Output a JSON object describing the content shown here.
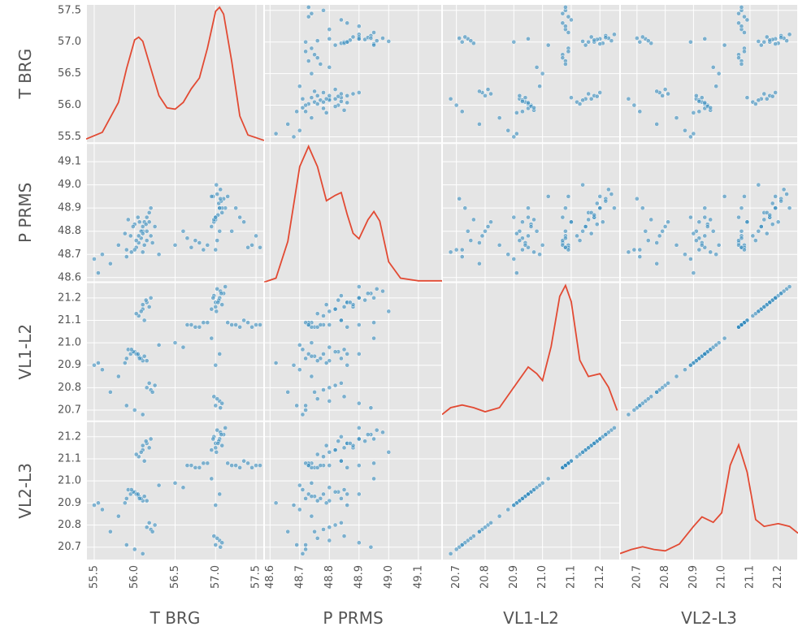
{
  "chart_data": {
    "type": "scatter_matrix",
    "diagonal": "kde",
    "grid": true,
    "point_color": "#348abd",
    "line_color": "#e24a33",
    "background": "#e5e5e5",
    "variables": [
      {
        "name": "T BRG",
        "lim": [
          55.4,
          57.6
        ],
        "ticks": [
          55.5,
          {
            "value": 56,
            "label": "56.0"
          },
          56.5,
          {
            "value": 57,
            "label": "57.0"
          },
          57.5
        ],
        "values": [
          55.9,
          55.95,
          56.0,
          56.05,
          56.1,
          55.92,
          56.02,
          56.08,
          55.98,
          56.12,
          55.88,
          56.04,
          55.96,
          56.06,
          56.15,
          56.05,
          56.1,
          56.15,
          56.2,
          56.08,
          56.12,
          56.18,
          56.02,
          56.14,
          56.1,
          56.95,
          57.0,
          57.05,
          57.1,
          57.02,
          57.08,
          56.98,
          57.04,
          57.06,
          57.0,
          57.12,
          56.97,
          57.03,
          57.07,
          57.01,
          56.7,
          56.8,
          56.9,
          57.2,
          57.3,
          57.4,
          57.5,
          56.75,
          56.85,
          57.25,
          57.35,
          57.45,
          57.15,
          56.65,
          57.55,
          57.0,
          57.05,
          56.98,
          57.08,
          57.02,
          57.06,
          56.2,
          56.25,
          56.15,
          56.22,
          56.18,
          55.5,
          55.6,
          55.7,
          55.8,
          55.9,
          56.0,
          56.1,
          55.55,
          56.5,
          56.6,
          57.0,
          57.05,
          56.95,
          56.3
        ],
        "kde": {
          "x": [
            55.4,
            55.6,
            55.8,
            55.9,
            56.0,
            56.05,
            56.1,
            56.2,
            56.3,
            56.4,
            56.5,
            56.6,
            56.7,
            56.8,
            56.9,
            57.0,
            57.05,
            57.1,
            57.2,
            57.3,
            57.4,
            57.6
          ],
          "density": [
            0.03,
            0.08,
            0.3,
            0.55,
            0.76,
            0.78,
            0.75,
            0.55,
            0.35,
            0.26,
            0.25,
            0.3,
            0.4,
            0.48,
            0.7,
            0.97,
            1.0,
            0.95,
            0.6,
            0.2,
            0.06,
            0.02
          ]
        }
      },
      {
        "name": "P PRMS",
        "lim": [
          48.58,
          49.18
        ],
        "ticks": [
          48.6,
          48.7,
          48.8,
          48.9,
          {
            "value": 49,
            "label": "49.0"
          },
          49.1
        ],
        "values": [
          48.72,
          48.78,
          48.83,
          48.75,
          48.8,
          48.85,
          48.73,
          48.77,
          48.82,
          48.74,
          48.79,
          48.86,
          48.71,
          48.84,
          48.76,
          48.78,
          48.82,
          48.86,
          48.9,
          48.8,
          48.84,
          48.88,
          48.76,
          48.83,
          48.79,
          48.82,
          48.86,
          48.9,
          48.94,
          48.96,
          48.88,
          48.84,
          48.92,
          48.98,
          48.85,
          48.9,
          48.95,
          48.87,
          48.93,
          49.0,
          48.73,
          48.75,
          48.74,
          48.8,
          48.86,
          48.73,
          48.78,
          48.76,
          48.72,
          48.9,
          48.84,
          48.74,
          48.95,
          48.77,
          48.73,
          48.72,
          48.8,
          48.85,
          48.9,
          48.76,
          48.94,
          48.78,
          48.82,
          48.8,
          48.75,
          48.84,
          48.68,
          48.7,
          48.66,
          48.74,
          48.69,
          48.72,
          48.71,
          48.62,
          48.74,
          48.8,
          48.86,
          48.9,
          48.95,
          48.7
        ],
        "kde": {
          "x": [
            48.58,
            48.62,
            48.66,
            48.7,
            48.73,
            48.76,
            48.79,
            48.82,
            48.84,
            48.86,
            48.88,
            48.9,
            48.93,
            48.95,
            48.97,
            49.0,
            49.04,
            49.1,
            49.18
          ],
          "density": [
            0.0,
            0.03,
            0.3,
            0.85,
            1.0,
            0.85,
            0.6,
            0.64,
            0.66,
            0.5,
            0.36,
            0.32,
            0.46,
            0.52,
            0.45,
            0.15,
            0.03,
            0.01,
            0.01
          ]
        }
      },
      {
        "name": "VL1-L2",
        "lim": [
          20.65,
          21.27
        ],
        "ticks": [
          20.7,
          20.8,
          20.9,
          {
            "value": 21,
            "label": "21.0"
          },
          21.1,
          21.2
        ],
        "values": [
          20.93,
          20.95,
          20.96,
          20.94,
          20.92,
          20.97,
          20.95,
          20.93,
          20.96,
          20.94,
          20.91,
          20.95,
          20.97,
          20.93,
          20.92,
          21.12,
          21.15,
          21.18,
          21.2,
          21.14,
          21.1,
          21.16,
          21.13,
          21.19,
          21.17,
          21.15,
          21.18,
          21.2,
          21.22,
          21.24,
          21.17,
          21.21,
          21.19,
          21.23,
          21.16,
          21.25,
          21.2,
          21.18,
          21.22,
          21.14,
          21.08,
          21.07,
          21.09,
          21.08,
          21.07,
          21.09,
          21.08,
          21.07,
          21.09,
          21.08,
          21.1,
          21.07,
          21.09,
          21.08,
          21.08,
          20.72,
          20.74,
          20.76,
          20.73,
          20.75,
          20.71,
          20.79,
          20.81,
          20.8,
          20.78,
          20.82,
          20.9,
          20.88,
          20.78,
          20.85,
          20.72,
          20.7,
          20.68,
          20.91,
          21.0,
          20.98,
          20.9,
          20.95,
          21.02,
          20.99
        ],
        "kde": {
          "x": [
            20.65,
            20.68,
            20.72,
            20.76,
            20.8,
            20.85,
            20.9,
            20.95,
            20.98,
            21.0,
            21.03,
            21.06,
            21.08,
            21.1,
            21.13,
            21.16,
            21.2,
            21.23,
            21.26
          ],
          "density": [
            0.05,
            0.1,
            0.12,
            0.1,
            0.07,
            0.1,
            0.25,
            0.4,
            0.35,
            0.3,
            0.55,
            0.92,
            1.0,
            0.88,
            0.45,
            0.33,
            0.35,
            0.25,
            0.08
          ]
        }
      },
      {
        "name": "VL2-L3",
        "lim": [
          20.64,
          21.27
        ],
        "ticks": [
          20.7,
          20.8,
          20.9,
          {
            "value": 21,
            "label": "21.0"
          },
          21.1,
          21.2
        ],
        "values": [
          20.92,
          20.94,
          20.95,
          20.93,
          20.91,
          20.96,
          20.94,
          20.92,
          20.95,
          20.93,
          20.9,
          20.94,
          20.96,
          20.92,
          20.91,
          21.11,
          21.14,
          21.17,
          21.19,
          21.13,
          21.09,
          21.15,
          21.12,
          21.18,
          21.16,
          21.14,
          21.17,
          21.19,
          21.21,
          21.23,
          21.16,
          21.2,
          21.18,
          21.22,
          21.15,
          21.24,
          21.19,
          21.17,
          21.21,
          21.13,
          21.07,
          21.06,
          21.08,
          21.07,
          21.06,
          21.08,
          21.07,
          21.06,
          21.08,
          21.07,
          21.09,
          21.06,
          21.08,
          21.07,
          21.07,
          20.71,
          20.73,
          20.75,
          20.72,
          20.74,
          20.7,
          20.78,
          20.8,
          20.79,
          20.77,
          20.81,
          20.89,
          20.87,
          20.77,
          20.84,
          20.71,
          20.69,
          20.67,
          20.9,
          20.99,
          20.97,
          20.89,
          20.94,
          21.01,
          20.98
        ],
        "kde": {
          "x": [
            20.64,
            20.68,
            20.72,
            20.76,
            20.8,
            20.85,
            20.9,
            20.93,
            20.97,
            21.0,
            21.03,
            21.06,
            21.09,
            21.12,
            21.15,
            21.2,
            21.24,
            21.27
          ],
          "density": [
            0.05,
            0.08,
            0.1,
            0.08,
            0.07,
            0.12,
            0.25,
            0.32,
            0.28,
            0.35,
            0.7,
            0.85,
            0.65,
            0.3,
            0.25,
            0.27,
            0.25,
            0.2
          ]
        }
      }
    ]
  }
}
